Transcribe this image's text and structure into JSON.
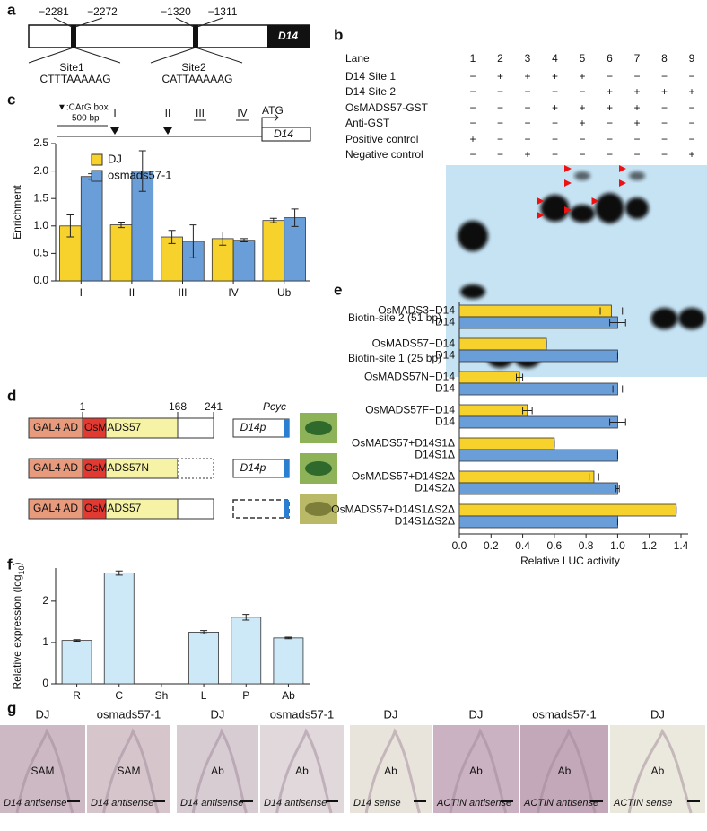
{
  "panel_labels": [
    "a",
    "b",
    "c",
    "d",
    "e",
    "f",
    "g"
  ],
  "panel_a": {
    "positions": [
      "−2281",
      "−2272",
      "−1320",
      "−1311"
    ],
    "gene": "D14",
    "sites": [
      {
        "name": "Site1",
        "sequence": "CTTTAAAAAG"
      },
      {
        "name": "Site2",
        "sequence": "CATTAAAAAG"
      }
    ]
  },
  "panel_b": {
    "rows": [
      {
        "label": "Lane",
        "cells": [
          "1",
          "2",
          "3",
          "4",
          "5",
          "6",
          "7",
          "8",
          "9"
        ]
      },
      {
        "label": "D14 Site 1",
        "cells": [
          "−",
          "+",
          "+",
          "+",
          "+",
          "−",
          "−",
          "−",
          "−"
        ]
      },
      {
        "label": "D14 Site 2",
        "cells": [
          "−",
          "−",
          "−",
          "−",
          "−",
          "+",
          "+",
          "+",
          "+"
        ]
      },
      {
        "label": "OsMADS57-GST",
        "cells": [
          "−",
          "−",
          "−",
          "+",
          "+",
          "+",
          "+",
          "−",
          "−"
        ]
      },
      {
        "label": "Anti-GST",
        "cells": [
          "−",
          "−",
          "−",
          "−",
          "+",
          "−",
          "+",
          "−",
          "−"
        ]
      },
      {
        "label": "Positive control",
        "cells": [
          "+",
          "−",
          "−",
          "−",
          "−",
          "−",
          "−",
          "−",
          "−"
        ]
      },
      {
        "label": "Negative control",
        "cells": [
          "−",
          "−",
          "+",
          "−",
          "−",
          "−",
          "−",
          "−",
          "+"
        ]
      }
    ],
    "markers": [
      "Biotin-site 2 (51 bp)",
      "Biotin-site 1 (25 bp)"
    ]
  },
  "panel_c_diagram": {
    "legend": "▼:CArG box",
    "scale": "500 bp",
    "regions": [
      "I",
      "II",
      "III",
      "IV"
    ],
    "start": "ATG",
    "gene": "D14"
  },
  "panel_d": {
    "positions": [
      "1",
      "168",
      "241"
    ],
    "domain": "GAL4 AD",
    "constructs": [
      "OsMADS57",
      "OsMADS57N",
      "OsMADS57"
    ],
    "reporter": "Pcyc",
    "promoters": [
      "D14p",
      "D14p"
    ]
  },
  "panel_g": {
    "images": [
      {
        "genotype": "DJ",
        "tissue": "SAM",
        "probe": "D14 antisense"
      },
      {
        "genotype": "osmads57-1",
        "tissue": "SAM",
        "probe": "D14 antisense"
      },
      {
        "genotype": "DJ",
        "tissue": "Ab",
        "probe": "D14 antisense"
      },
      {
        "genotype": "osmads57-1",
        "tissue": "Ab",
        "probe": "D14 antisense"
      },
      {
        "genotype": "DJ",
        "tissue": "Ab",
        "probe": "D14 sense"
      },
      {
        "genotype": "DJ",
        "tissue": "Ab",
        "probe": "ACTIN antisense"
      },
      {
        "genotype": "osmads57-1",
        "tissue": "Ab",
        "probe": "ACTIN antisense"
      },
      {
        "genotype": "DJ",
        "tissue": "Ab",
        "probe": "ACTIN sense"
      }
    ]
  },
  "chart_data": [
    {
      "type": "bar",
      "ylabel": "Enrichment",
      "categories": [
        "I",
        "II",
        "III",
        "IV",
        "Ub"
      ],
      "series": [
        {
          "name": "DJ",
          "color": "#f7d22c",
          "values": [
            1.0,
            1.02,
            0.8,
            0.77,
            1.1
          ],
          "errors": [
            0.2,
            0.05,
            0.12,
            0.12,
            0.04
          ]
        },
        {
          "name": "osmads57-1",
          "color": "#6a9ed9",
          "values": [
            1.9,
            2.0,
            0.72,
            0.74,
            1.15
          ],
          "errors": [
            0.05,
            0.37,
            0.3,
            0.03,
            0.16
          ]
        }
      ],
      "ylim": [
        0,
        2.5
      ],
      "yticks": [
        {
          "value": 0,
          "label": "0.0"
        },
        0.5,
        {
          "value": 1,
          "label": "1.0"
        },
        1.5,
        {
          "value": 2,
          "label": "2.0"
        },
        2.5
      ],
      "legend": "upper left"
    },
    {
      "type": "barh",
      "xlabel": "Relative LUC activity",
      "categories": [
        "OsMADS3+D14",
        "OsMADS57+D14",
        "OsMADS57N+D14",
        "OsMADS57F+D14",
        "OsMADS57+D14S1Δ",
        "OsMADS57+D14S2Δ",
        "OsMADS57+D14S1ΔS2Δ"
      ],
      "control_labels": [
        "D14",
        "D14",
        "D14",
        "D14",
        "D14S1Δ",
        "D14S2Δ",
        "D14S1ΔS2Δ"
      ],
      "series": [
        {
          "color": "#f7d22c",
          "values": [
            0.96,
            0.55,
            0.38,
            0.43,
            0.6,
            0.85,
            1.37
          ],
          "errors": [
            0.07,
            0,
            0.02,
            0.03,
            0,
            0.03,
            0
          ]
        },
        {
          "color": "#6a9ed9",
          "values": [
            1.0,
            1.0,
            1.0,
            1.0,
            1.0,
            1.0,
            1.0
          ],
          "errors": [
            0.05,
            0,
            0.03,
            0.05,
            0,
            0.01,
            0
          ]
        }
      ],
      "xlim": [
        0,
        1.4
      ],
      "xticks": [
        {
          "value": 0,
          "label": "0.0"
        },
        0.2,
        0.4,
        0.6,
        0.8,
        {
          "value": 1,
          "label": "1.0"
        },
        1.2,
        1.4
      ]
    },
    {
      "type": "bar",
      "ylabel": [
        "Relative expression (log",
        "10",
        ")"
      ],
      "categories": [
        "R",
        "C",
        "Sh",
        "L",
        "P",
        "Ab"
      ],
      "values": [
        1.05,
        2.68,
        0,
        1.25,
        1.61,
        1.11
      ],
      "errors": [
        0.02,
        0.05,
        null,
        0.04,
        0.07,
        0.02
      ],
      "color": "#cde9f8",
      "ylim": [
        0,
        2.8
      ],
      "yticks": [
        0,
        1,
        2
      ]
    }
  ]
}
